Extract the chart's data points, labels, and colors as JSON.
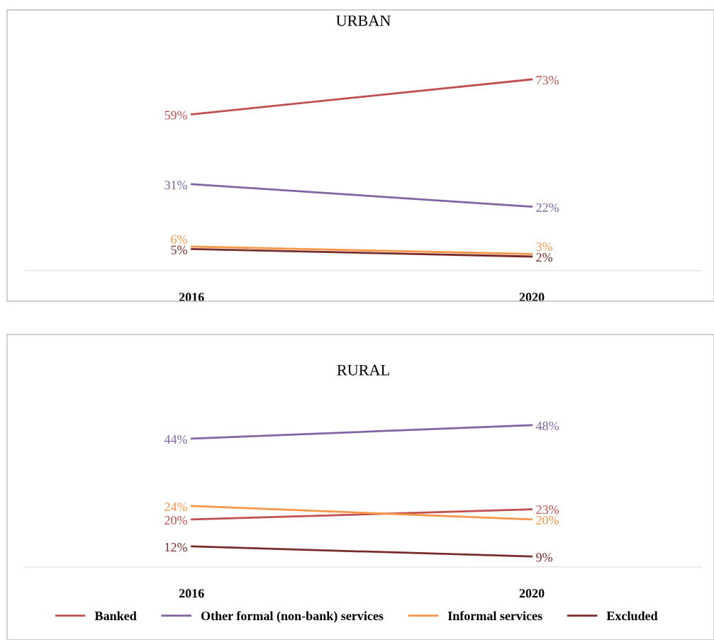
{
  "chart_data": [
    {
      "type": "line",
      "title": "URBAN",
      "categories": [
        "2016",
        "2020"
      ],
      "tick_labels": "x",
      "grid": false,
      "legend": "bottom",
      "marker": "none",
      "line_style": "solid",
      "series": [
        {
          "name": "Banked",
          "color": "#c0504d",
          "values": [
            59,
            73
          ],
          "value_labels": [
            "59%",
            "73%"
          ]
        },
        {
          "name": "Other formal (non-bank) services",
          "color": "#8064a2",
          "values": [
            31,
            22
          ],
          "value_labels": [
            "31%",
            "22%"
          ]
        },
        {
          "name": "Informal services",
          "color": "#f79646",
          "values": [
            6,
            3
          ],
          "value_labels": [
            "6%",
            "3%"
          ]
        },
        {
          "name": "Excluded",
          "color": "#772c2a",
          "values": [
            5,
            2
          ],
          "value_labels": [
            "5%",
            "2%"
          ]
        }
      ]
    },
    {
      "type": "line",
      "title": "RURAL",
      "categories": [
        "2016",
        "2020"
      ],
      "tick_labels": "x",
      "grid": false,
      "legend": "bottom",
      "marker": "none",
      "line_style": "solid",
      "series": [
        {
          "name": "Banked",
          "color": "#c0504d",
          "values": [
            20,
            23
          ],
          "value_labels": [
            "20%",
            "23%"
          ]
        },
        {
          "name": "Other formal (non-bank) services",
          "color": "#8064a2",
          "values": [
            44,
            48
          ],
          "value_labels": [
            "44%",
            "48%"
          ]
        },
        {
          "name": "Informal services",
          "color": "#f79646",
          "values": [
            24,
            20
          ],
          "value_labels": [
            "24%",
            "20%"
          ]
        },
        {
          "name": "Excluded",
          "color": "#772c2a",
          "values": [
            12,
            9
          ],
          "value_labels": [
            "12%",
            "9%"
          ]
        }
      ]
    }
  ]
}
